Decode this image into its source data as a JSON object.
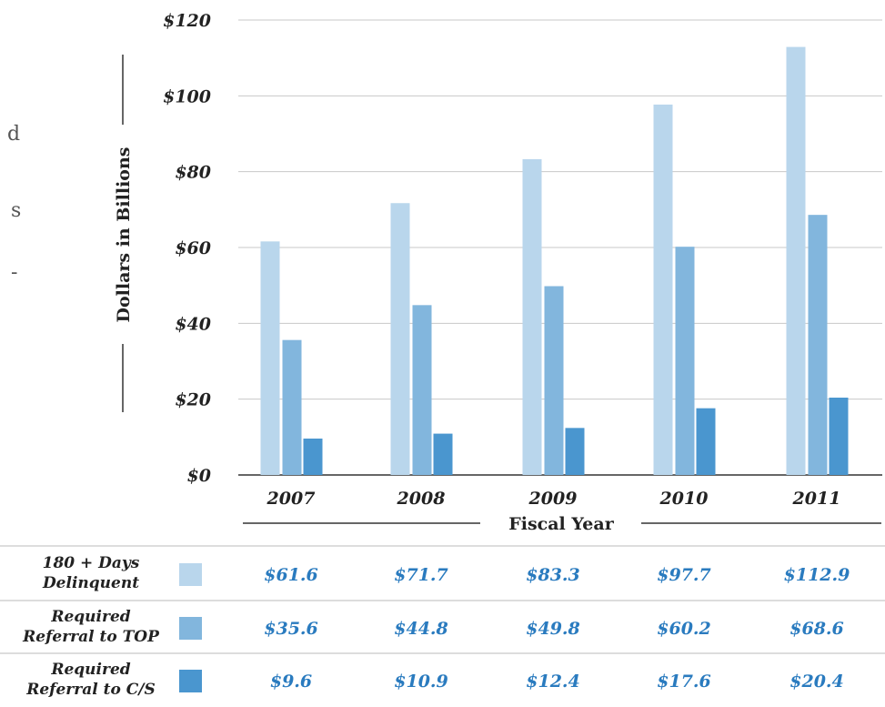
{
  "chart_data": {
    "type": "bar",
    "categories": [
      "2007",
      "2008",
      "2009",
      "2010",
      "2011"
    ],
    "series": [
      {
        "name": "180 + Days Delinquent",
        "name_lines": [
          "180 + Days",
          "Delinquent"
        ],
        "values": [
          61.6,
          71.7,
          83.3,
          97.7,
          112.9
        ],
        "value_labels": [
          "$61.6",
          "$71.7",
          "$83.3",
          "$97.7",
          "$112.9"
        ],
        "color": "#b9d6ec"
      },
      {
        "name": "Required Referral to TOP",
        "name_lines": [
          "Required",
          "Referral to TOP"
        ],
        "values": [
          35.6,
          44.8,
          49.8,
          60.2,
          68.6
        ],
        "value_labels": [
          "$35.6",
          "$44.8",
          "$49.8",
          "$60.2",
          "$68.6"
        ],
        "color": "#82b6dd"
      },
      {
        "name": "Required Referral to C/S",
        "name_lines": [
          "Required",
          "Referral to C/S"
        ],
        "values": [
          9.6,
          10.9,
          12.4,
          17.6,
          20.4
        ],
        "value_labels": [
          "$9.6",
          "$10.9",
          "$12.4",
          "$17.6",
          "$20.4"
        ],
        "color": "#4a96cf"
      }
    ],
    "yticks": [
      0,
      20,
      40,
      60,
      80,
      100,
      120
    ],
    "ytick_labels": [
      "$0",
      "$20",
      "$40",
      "$60",
      "$80",
      "$100",
      "$120"
    ],
    "ylim": [
      0,
      120
    ],
    "ylabel": "Dollars  in  Billions",
    "xlabel": "Fiscal Year",
    "grid": true,
    "value_color": "#2a7bbf",
    "legend_placement": "bottom-table"
  },
  "cropped_text": [
    "d",
    "s",
    "-"
  ]
}
